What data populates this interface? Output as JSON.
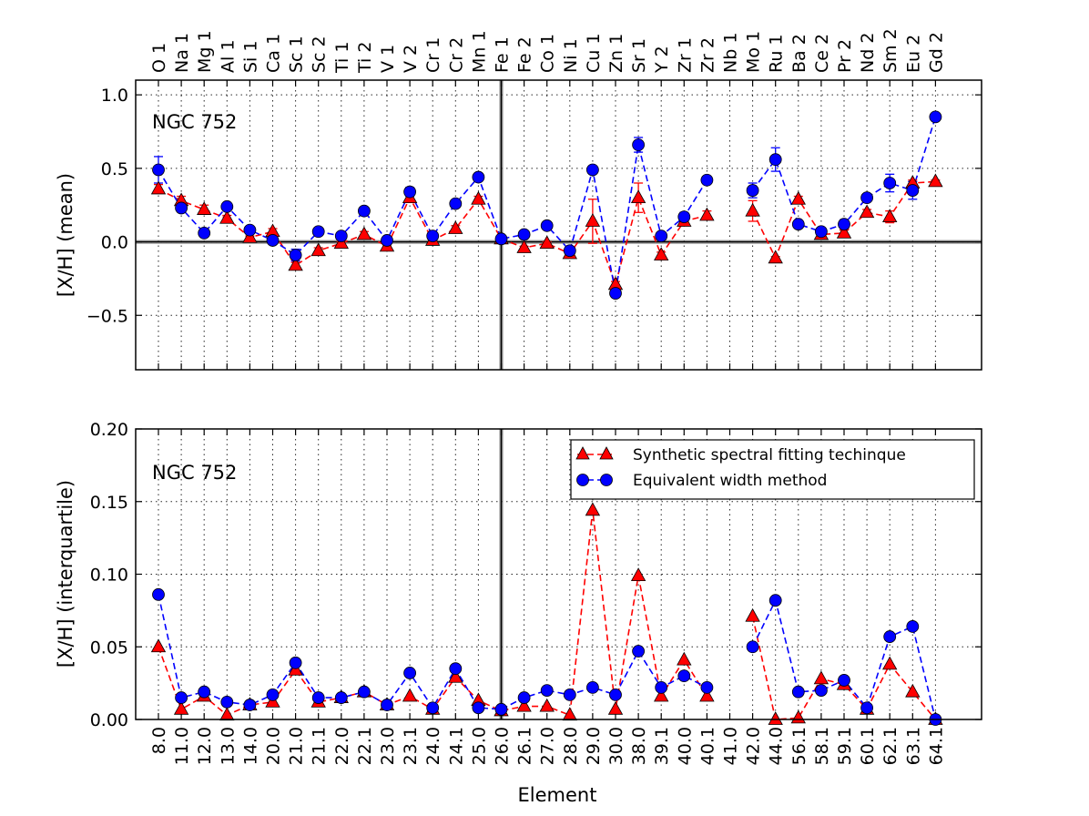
{
  "figure": {
    "xlabel": "Element",
    "legend": {
      "placement": "upper-right of bottom panel",
      "entries": [
        {
          "label": "Synthetic spectral fitting techinque",
          "marker": "triangle",
          "color": "#ff0000"
        },
        {
          "label": "Equivalent width method",
          "marker": "circle",
          "color": "#0000ff"
        }
      ]
    },
    "colors": {
      "synthetic": "#ff0000",
      "equivalent_width": "#0000ff",
      "reference": "#555555"
    }
  },
  "chart_data": [
    {
      "type": "line",
      "panel": "top",
      "annotation": "NGC 752",
      "ylabel": "[X/H] (mean)",
      "ylim": [
        -0.87,
        1.1
      ],
      "yticks": [
        -0.5,
        0.0,
        0.5,
        1.0
      ],
      "ytick_labels": [
        "−0.5",
        "0.0",
        "0.5",
        "1.0"
      ],
      "hline": 0.0,
      "vline_category": "Fe 1",
      "categories_top": [
        "O 1",
        "Na 1",
        "Mg 1",
        "Al 1",
        "Si 1",
        "Ca 1",
        "Sc 1",
        "Sc 2",
        "Ti 1",
        "Ti 2",
        "V 1",
        "V 2",
        "Cr 1",
        "Cr 2",
        "Mn 1",
        "Fe 1",
        "Fe 2",
        "Co 1",
        "Ni 1",
        "Cu 1",
        "Zn 1",
        "Sr 1",
        "Y 2",
        "Zr 1",
        "Zr 2",
        "Nb 1",
        "Mo 1",
        "Ru 1",
        "Ba 2",
        "Ce 2",
        "Pr 2",
        "Nd 2",
        "Sm 2",
        "Eu 2",
        "Gd 2"
      ],
      "series": [
        {
          "name": "Synthetic spectral fitting techinque",
          "values": [
            0.36,
            0.28,
            0.22,
            0.16,
            0.03,
            0.07,
            -0.16,
            -0.06,
            -0.01,
            0.05,
            -0.03,
            0.3,
            0.01,
            0.09,
            0.29,
            0.02,
            -0.04,
            -0.01,
            -0.08,
            0.14,
            -0.29,
            0.3,
            -0.09,
            0.14,
            0.18,
            null,
            0.21,
            -0.11,
            0.29,
            0.05,
            0.06,
            0.2,
            0.17,
            0.4,
            0.41
          ],
          "errors": [
            0.03,
            0.03,
            0.03,
            0.02,
            0.01,
            0.02,
            0.02,
            0.02,
            0.01,
            0.02,
            0.01,
            0.02,
            0.01,
            0.02,
            0.02,
            0.01,
            0.01,
            0.01,
            0.02,
            0.15,
            0.02,
            0.1,
            0.02,
            0.02,
            0.03,
            null,
            0.07,
            0.01,
            0.02,
            0.02,
            0.02,
            0.02,
            0.04,
            0.02,
            0.01
          ]
        },
        {
          "name": "Equivalent width method",
          "values": [
            0.49,
            0.23,
            0.06,
            0.24,
            0.08,
            0.01,
            -0.09,
            0.07,
            0.04,
            0.21,
            0.01,
            0.34,
            0.04,
            0.26,
            0.44,
            0.02,
            0.05,
            0.11,
            -0.06,
            0.49,
            -0.35,
            0.66,
            0.04,
            0.17,
            0.42,
            null,
            0.35,
            0.56,
            0.12,
            0.07,
            0.12,
            0.3,
            0.4,
            0.35,
            0.85
          ],
          "errors": [
            0.09,
            0.02,
            0.02,
            0.02,
            0.01,
            0.01,
            0.04,
            0.01,
            0.01,
            0.01,
            0.01,
            0.03,
            0.01,
            0.02,
            0.02,
            0.01,
            0.01,
            0.02,
            0.02,
            0.02,
            0.02,
            0.05,
            0.02,
            0.03,
            0.02,
            null,
            0.05,
            0.08,
            0.02,
            0.02,
            0.03,
            0.01,
            0.06,
            0.06,
            0.0
          ]
        }
      ]
    },
    {
      "type": "line",
      "panel": "bottom",
      "annotation": "NGC 752",
      "ylabel": "[X/H] (interquartile)",
      "ylim": [
        0.0,
        0.2
      ],
      "yticks": [
        0.0,
        0.05,
        0.1,
        0.15,
        0.2
      ],
      "ytick_labels": [
        "0.00",
        "0.05",
        "0.10",
        "0.15",
        "0.20"
      ],
      "vline_category": "26.0",
      "categories_bottom": [
        "8.0",
        "11.0",
        "12.0",
        "13.0",
        "14.0",
        "20.0",
        "21.0",
        "21.1",
        "22.0",
        "22.1",
        "23.0",
        "23.1",
        "24.0",
        "24.1",
        "25.0",
        "26.0",
        "26.1",
        "27.0",
        "28.0",
        "29.0",
        "30.0",
        "38.0",
        "39.1",
        "40.0",
        "40.1",
        "41.0",
        "42.0",
        "44.0",
        "56.1",
        "58.1",
        "59.1",
        "60.1",
        "62.1",
        "63.1",
        "64.1"
      ],
      "series": [
        {
          "name": "Synthetic spectral fitting techinque",
          "values": [
            0.05,
            0.007,
            0.016,
            0.003,
            0.01,
            0.012,
            0.034,
            0.012,
            0.015,
            0.019,
            0.01,
            0.016,
            0.007,
            0.029,
            0.013,
            0.006,
            0.009,
            0.009,
            0.003,
            0.144,
            0.007,
            0.099,
            0.016,
            0.041,
            0.016,
            null,
            0.071,
            0.0,
            0.001,
            0.028,
            0.024,
            0.007,
            0.038,
            0.019,
            0.0
          ]
        },
        {
          "name": "Equivalent width method",
          "values": [
            0.086,
            0.015,
            0.019,
            0.012,
            0.01,
            0.017,
            0.039,
            0.015,
            0.015,
            0.019,
            0.01,
            0.032,
            0.008,
            0.035,
            0.008,
            0.007,
            0.015,
            0.02,
            0.017,
            0.022,
            0.017,
            0.047,
            0.022,
            0.03,
            0.022,
            null,
            0.05,
            0.082,
            0.019,
            0.02,
            0.027,
            0.008,
            0.057,
            0.064,
            0.0
          ]
        }
      ]
    }
  ]
}
